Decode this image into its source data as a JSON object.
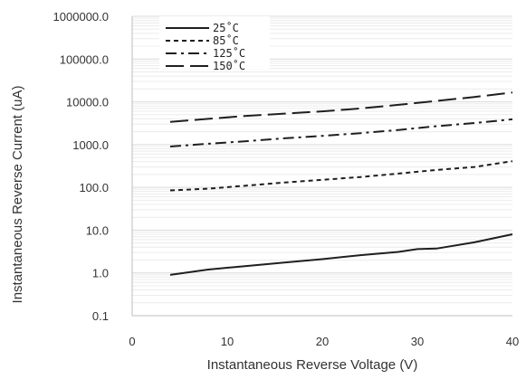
{
  "chart_data": {
    "type": "line",
    "title": "",
    "xlabel": "Instantaneous Reverse Voltage (V)",
    "ylabel": "Instantaneous Reverse Current (uA)",
    "xlim": [
      0,
      40
    ],
    "ylim": [
      0.1,
      1000000
    ],
    "y_scale": "log",
    "x_ticks": [
      0,
      10,
      20,
      30,
      40
    ],
    "x_tick_labels": [
      "0",
      "10",
      "20",
      "30",
      "40"
    ],
    "y_ticks": [
      0.1,
      1,
      10,
      100,
      1000,
      10000,
      100000,
      1000000
    ],
    "y_tick_labels": [
      "0.1",
      "1.0",
      "10.0",
      "100.0",
      "1000.0",
      "10000.0",
      "100000.0",
      "1000000.0"
    ],
    "grid": true,
    "legend_position": "top-left",
    "series": [
      {
        "name": "25˚C",
        "line_style": "solid",
        "x": [
          4,
          8,
          12,
          16,
          20,
          24,
          28,
          30,
          32,
          36,
          40
        ],
        "values": [
          0.9,
          1.2,
          1.45,
          1.75,
          2.1,
          2.6,
          3.1,
          3.6,
          3.7,
          5.2,
          8.0
        ]
      },
      {
        "name": "85˚C",
        "line_style": "short-dash",
        "x": [
          4,
          8,
          12,
          16,
          20,
          24,
          28,
          32,
          36,
          40
        ],
        "values": [
          85,
          93,
          110,
          130,
          150,
          175,
          210,
          255,
          300,
          410
        ]
      },
      {
        "name": "125˚C",
        "line_style": "dash-dot",
        "x": [
          4,
          8,
          12,
          16,
          20,
          24,
          28,
          32,
          36,
          40
        ],
        "values": [
          900,
          1050,
          1200,
          1400,
          1600,
          1850,
          2200,
          2700,
          3200,
          3900
        ]
      },
      {
        "name": "150˚C",
        "line_style": "long-dash",
        "x": [
          4,
          8,
          12,
          16,
          20,
          24,
          28,
          32,
          36,
          40
        ],
        "values": [
          3400,
          4000,
          4700,
          5300,
          6000,
          7000,
          8500,
          10500,
          13000,
          16500
        ]
      }
    ]
  },
  "colors": {
    "line": "#1f1f1f",
    "grid": "#d9d9d9",
    "axis": "#bdbdbd",
    "text": "#333333"
  }
}
